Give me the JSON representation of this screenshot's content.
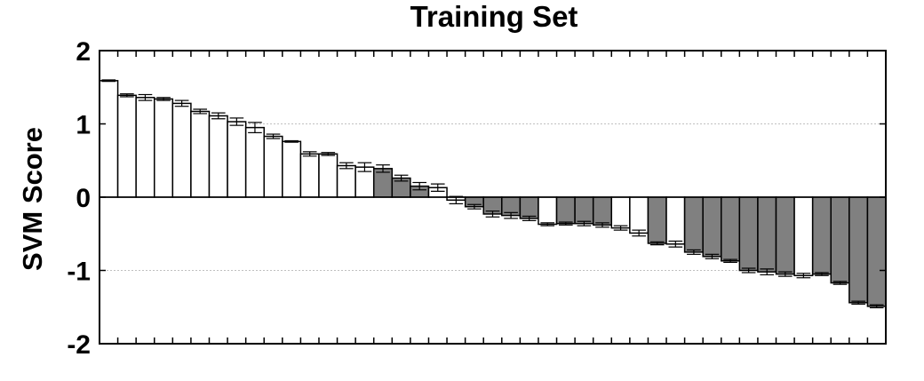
{
  "chart_data": {
    "type": "bar",
    "title": "Training Set",
    "xlabel": "",
    "ylabel": "SVM Score",
    "ylim": [
      -2,
      2
    ],
    "yticks": [
      2,
      1,
      0,
      -1,
      -2
    ],
    "ytick_labels": [
      "2",
      "1",
      "0",
      "-1",
      "-2"
    ],
    "grid": "dotted horizontal at 1 and -1",
    "legend": "none",
    "colors": {
      "positive_class_fill": "#ffffff",
      "negative_class_fill": "#808080",
      "bar_edge": "#000000",
      "grid": "#c0c0c0"
    },
    "bars": [
      {
        "value": 1.59,
        "err": 0.01,
        "filled": false
      },
      {
        "value": 1.39,
        "err": 0.02,
        "filled": false
      },
      {
        "value": 1.36,
        "err": 0.04,
        "filled": false
      },
      {
        "value": 1.34,
        "err": 0.02,
        "filled": false
      },
      {
        "value": 1.28,
        "err": 0.04,
        "filled": false
      },
      {
        "value": 1.17,
        "err": 0.03,
        "filled": false
      },
      {
        "value": 1.11,
        "err": 0.04,
        "filled": false
      },
      {
        "value": 1.03,
        "err": 0.05,
        "filled": false
      },
      {
        "value": 0.95,
        "err": 0.07,
        "filled": false
      },
      {
        "value": 0.83,
        "err": 0.03,
        "filled": false
      },
      {
        "value": 0.76,
        "err": 0.01,
        "filled": false
      },
      {
        "value": 0.59,
        "err": 0.03,
        "filled": false
      },
      {
        "value": 0.59,
        "err": 0.02,
        "filled": false
      },
      {
        "value": 0.43,
        "err": 0.04,
        "filled": false
      },
      {
        "value": 0.41,
        "err": 0.06,
        "filled": false
      },
      {
        "value": 0.39,
        "err": 0.05,
        "filled": true
      },
      {
        "value": 0.26,
        "err": 0.04,
        "filled": true
      },
      {
        "value": 0.15,
        "err": 0.05,
        "filled": true
      },
      {
        "value": 0.13,
        "err": 0.05,
        "filled": false
      },
      {
        "value": -0.04,
        "err": 0.05,
        "filled": false
      },
      {
        "value": -0.13,
        "err": 0.03,
        "filled": true
      },
      {
        "value": -0.23,
        "err": 0.04,
        "filled": true
      },
      {
        "value": -0.25,
        "err": 0.04,
        "filled": true
      },
      {
        "value": -0.29,
        "err": 0.03,
        "filled": true
      },
      {
        "value": -0.37,
        "err": 0.02,
        "filled": false
      },
      {
        "value": -0.36,
        "err": 0.02,
        "filled": true
      },
      {
        "value": -0.36,
        "err": 0.03,
        "filled": true
      },
      {
        "value": -0.38,
        "err": 0.03,
        "filled": true
      },
      {
        "value": -0.42,
        "err": 0.03,
        "filled": false
      },
      {
        "value": -0.49,
        "err": 0.04,
        "filled": false
      },
      {
        "value": -0.63,
        "err": 0.02,
        "filled": true
      },
      {
        "value": -0.64,
        "err": 0.04,
        "filled": false
      },
      {
        "value": -0.75,
        "err": 0.03,
        "filled": true
      },
      {
        "value": -0.81,
        "err": 0.03,
        "filled": true
      },
      {
        "value": -0.87,
        "err": 0.02,
        "filled": true
      },
      {
        "value": -1.0,
        "err": 0.03,
        "filled": true
      },
      {
        "value": -1.02,
        "err": 0.04,
        "filled": true
      },
      {
        "value": -1.05,
        "err": 0.03,
        "filled": true
      },
      {
        "value": -1.07,
        "err": 0.03,
        "filled": false
      },
      {
        "value": -1.05,
        "err": 0.02,
        "filled": true
      },
      {
        "value": -1.17,
        "err": 0.02,
        "filled": true
      },
      {
        "value": -1.44,
        "err": 0.02,
        "filled": true
      },
      {
        "value": -1.49,
        "err": 0.02,
        "filled": true
      }
    ]
  }
}
